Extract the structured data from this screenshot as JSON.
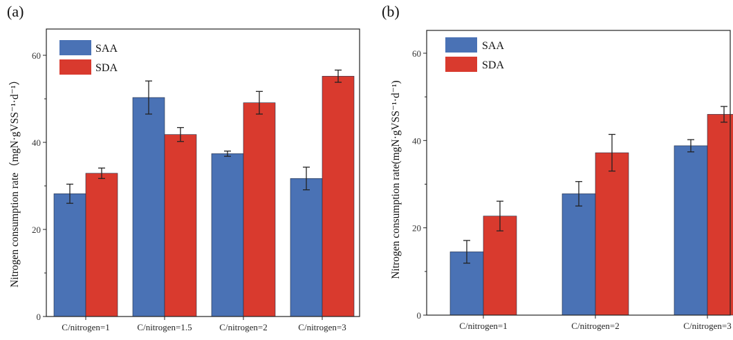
{
  "charts": [
    {
      "panel_label": "(a)",
      "chart_data": {
        "type": "bar",
        "categories": [
          "C/nitrogen=1",
          "C/nitrogen=1.5",
          "C/nitrogen=2",
          "C/nitrogen=3"
        ],
        "series": [
          {
            "name": "SAA",
            "color": "#4a72b5",
            "values": [
              28.2,
              50.3,
              37.4,
              31.7
            ],
            "errors": [
              2.2,
              3.8,
              0.6,
              2.6
            ]
          },
          {
            "name": "SDA",
            "color": "#d93a2e",
            "values": [
              32.9,
              41.8,
              49.1,
              55.2
            ],
            "errors": [
              1.2,
              1.6,
              2.6,
              1.4
            ]
          }
        ],
        "ylabel": "Nitrogen consumption rate（mgN·gVSS⁻¹·d⁻¹）",
        "ylim": [
          0,
          60
        ],
        "yticks": [
          "0",
          "20",
          "40",
          "60"
        ],
        "legend": "top-left"
      }
    },
    {
      "panel_label": "(b)",
      "chart_data": {
        "type": "bar",
        "categories": [
          "C/nitrogen=1",
          "C/nitrogen=2",
          "C/nitrogen=3"
        ],
        "series": [
          {
            "name": "SAA",
            "color": "#4a72b5",
            "values": [
              14.5,
              27.8,
              38.8
            ],
            "errors": [
              2.6,
              2.8,
              1.4
            ]
          },
          {
            "name": "SDA",
            "color": "#d93a2e",
            "values": [
              22.7,
              37.2,
              46.0
            ],
            "errors": [
              3.4,
              4.2,
              1.8
            ]
          }
        ],
        "ylabel": "Nitrogen consumption rate(mgN·gVSS⁻¹·d⁻¹)",
        "ylim": [
          0,
          60
        ],
        "yticks": [
          "0",
          "20",
          "40",
          "60"
        ],
        "legend": "top-left"
      }
    }
  ]
}
